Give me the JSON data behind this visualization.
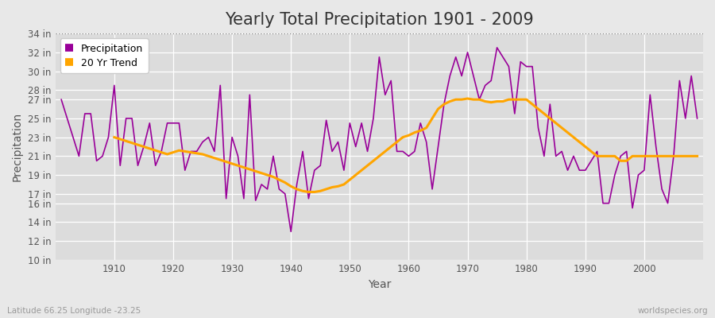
{
  "title": "Yearly Total Precipitation 1901 - 2009",
  "xlabel": "Year",
  "ylabel": "Precipitation",
  "subtitle": "Latitude 66.25 Longitude -23.25",
  "watermark": "worldspecies.org",
  "years": [
    1901,
    1902,
    1903,
    1904,
    1905,
    1906,
    1907,
    1908,
    1909,
    1910,
    1911,
    1912,
    1913,
    1914,
    1915,
    1916,
    1917,
    1918,
    1919,
    1920,
    1921,
    1922,
    1923,
    1924,
    1925,
    1926,
    1927,
    1928,
    1929,
    1930,
    1931,
    1932,
    1933,
    1934,
    1935,
    1936,
    1937,
    1938,
    1939,
    1940,
    1941,
    1942,
    1943,
    1944,
    1945,
    1946,
    1947,
    1948,
    1949,
    1950,
    1951,
    1952,
    1953,
    1954,
    1955,
    1956,
    1957,
    1958,
    1959,
    1960,
    1961,
    1962,
    1963,
    1964,
    1965,
    1966,
    1967,
    1968,
    1969,
    1970,
    1971,
    1972,
    1973,
    1974,
    1975,
    1976,
    1977,
    1978,
    1979,
    1980,
    1981,
    1982,
    1983,
    1984,
    1985,
    1986,
    1987,
    1988,
    1989,
    1990,
    1991,
    1992,
    1993,
    1994,
    1995,
    1996,
    1997,
    1998,
    1999,
    2000,
    2001,
    2002,
    2003,
    2004,
    2005,
    2006,
    2007,
    2008,
    2009
  ],
  "precip": [
    27.0,
    25.0,
    23.0,
    21.0,
    25.5,
    25.5,
    20.5,
    21.0,
    23.0,
    28.5,
    20.0,
    25.0,
    25.0,
    20.0,
    22.0,
    24.5,
    20.0,
    21.5,
    24.5,
    24.5,
    24.5,
    19.5,
    21.5,
    21.5,
    22.5,
    23.0,
    21.5,
    28.5,
    16.5,
    23.0,
    21.0,
    16.5,
    27.5,
    16.3,
    18.0,
    17.5,
    21.0,
    17.5,
    17.0,
    13.0,
    18.0,
    21.5,
    16.5,
    19.5,
    20.0,
    24.8,
    21.5,
    22.5,
    19.5,
    24.5,
    22.0,
    24.5,
    21.5,
    25.0,
    31.5,
    27.5,
    29.0,
    21.5,
    21.5,
    21.0,
    21.5,
    24.5,
    22.5,
    17.5,
    22.0,
    26.5,
    29.5,
    31.5,
    29.5,
    32.0,
    29.5,
    27.0,
    28.5,
    29.0,
    32.5,
    31.5,
    30.5,
    25.5,
    31.0,
    30.5,
    30.5,
    24.0,
    21.0,
    26.5,
    21.0,
    21.5,
    19.5,
    21.0,
    19.5,
    19.5,
    20.5,
    21.5,
    16.0,
    16.0,
    19.0,
    21.0,
    21.5,
    15.5,
    19.0,
    19.5,
    27.5,
    22.0,
    17.5,
    16.0,
    21.0,
    29.0,
    25.0,
    29.5,
    25.0
  ],
  "trend_years": [
    1910,
    1911,
    1912,
    1913,
    1914,
    1915,
    1916,
    1917,
    1918,
    1919,
    1920,
    1921,
    1922,
    1923,
    1924,
    1925,
    1926,
    1927,
    1928,
    1929,
    1930,
    1931,
    1932,
    1933,
    1934,
    1935,
    1936,
    1937,
    1938,
    1939,
    1940,
    1941,
    1942,
    1943,
    1944,
    1945,
    1946,
    1947,
    1948,
    1949,
    1950,
    1951,
    1952,
    1953,
    1954,
    1955,
    1956,
    1957,
    1958,
    1959,
    1960,
    1961,
    1962,
    1963,
    1964,
    1965,
    1966,
    1967,
    1968,
    1969,
    1970,
    1971,
    1972,
    1973,
    1974,
    1975,
    1976,
    1977,
    1978,
    1979,
    1980,
    1981,
    1982,
    1983,
    1984,
    1985,
    1986,
    1987,
    1988,
    1989,
    1990,
    1991,
    1992,
    1993,
    1994,
    1995,
    1996,
    1997,
    1998,
    1999,
    2000,
    2001,
    2002,
    2003,
    2004,
    2005,
    2006,
    2007,
    2008,
    2009
  ],
  "trend": [
    23.0,
    22.8,
    22.6,
    22.4,
    22.2,
    22.0,
    21.8,
    21.6,
    21.4,
    21.2,
    21.4,
    21.6,
    21.5,
    21.4,
    21.3,
    21.2,
    21.0,
    20.8,
    20.6,
    20.4,
    20.2,
    20.0,
    19.8,
    19.6,
    19.4,
    19.2,
    19.0,
    18.8,
    18.5,
    18.2,
    17.8,
    17.5,
    17.3,
    17.2,
    17.2,
    17.3,
    17.5,
    17.7,
    17.8,
    18.0,
    18.5,
    19.0,
    19.5,
    20.0,
    20.5,
    21.0,
    21.5,
    22.0,
    22.5,
    23.0,
    23.2,
    23.5,
    23.7,
    24.0,
    25.0,
    26.0,
    26.5,
    26.8,
    27.0,
    27.0,
    27.1,
    27.0,
    27.0,
    26.8,
    26.7,
    26.8,
    26.8,
    27.0,
    27.0,
    27.0,
    27.0,
    26.5,
    26.0,
    25.5,
    25.0,
    24.5,
    24.0,
    23.5,
    23.0,
    22.5,
    22.0,
    21.5,
    21.0,
    21.0,
    21.0,
    21.0,
    20.5,
    20.5,
    21.0,
    21.0,
    21.0,
    21.0,
    21.0,
    21.0,
    21.0,
    21.0,
    21.0,
    21.0,
    21.0,
    21.0
  ],
  "precip_color": "#990099",
  "trend_color": "#FFA500",
  "bg_color": "#E8E8E8",
  "plot_bg_color": "#DCDCDC",
  "grid_color": "#FFFFFF",
  "title_color": "#333333",
  "axis_label_color": "#555555",
  "tick_label_color": "#555555",
  "ylim": [
    10,
    34
  ],
  "yticks": [
    10,
    12,
    14,
    16,
    17,
    19,
    21,
    23,
    25,
    27,
    28,
    30,
    32,
    34
  ],
  "ytick_labels": [
    "10 in",
    "12 in",
    "14 in",
    "16 in",
    "17 in",
    "19 in",
    "21 in",
    "23 in",
    "25 in",
    "27 in",
    "28 in",
    "30 in",
    "32 in",
    "34 in"
  ],
  "xticks": [
    1910,
    1920,
    1930,
    1940,
    1950,
    1960,
    1970,
    1980,
    1990,
    2000
  ],
  "xlim": [
    1900,
    2010
  ],
  "top_dotted_y": 34,
  "legend_labels": [
    "Precipitation",
    "20 Yr Trend"
  ],
  "title_fontsize": 15,
  "axis_fontsize": 10,
  "tick_fontsize": 8.5
}
